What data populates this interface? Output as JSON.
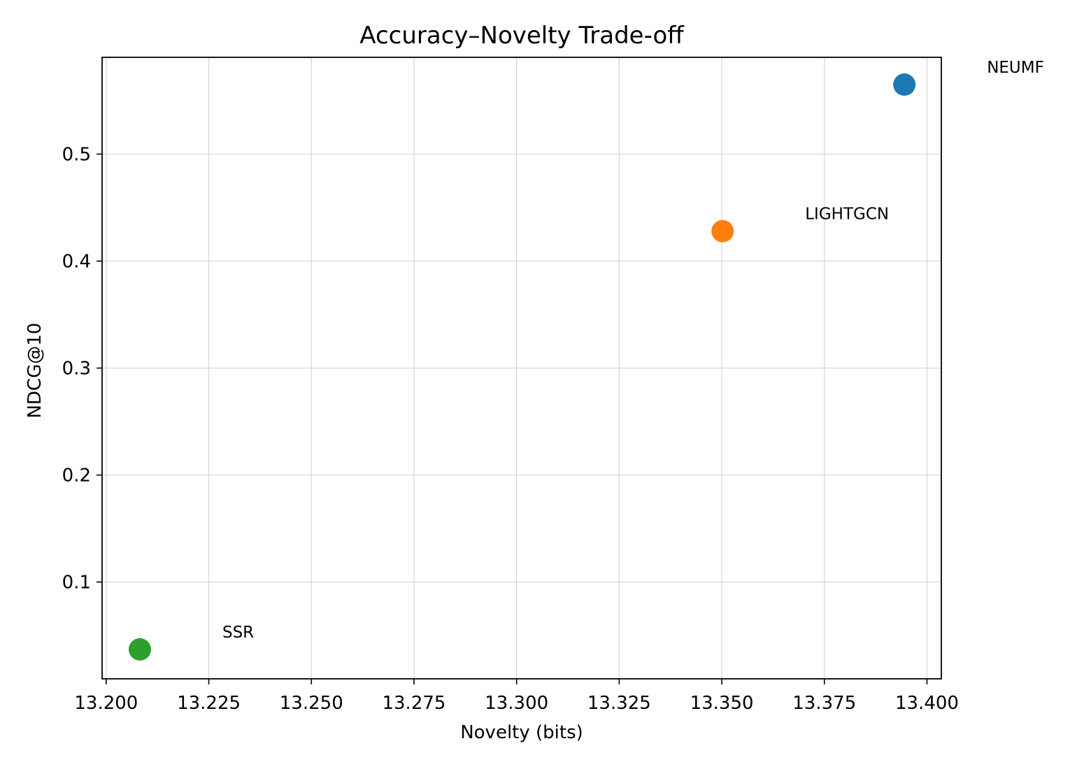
{
  "chart_data": {
    "type": "scatter",
    "title": "Accuracy–Novelty Trade-off",
    "xlabel": "Novelty (bits)",
    "ylabel": "NDCG@10",
    "xlim": [
      13.199,
      13.4035
    ],
    "ylim": [
      0.0095,
      0.5905
    ],
    "x_ticks": [
      13.2,
      13.225,
      13.25,
      13.275,
      13.3,
      13.325,
      13.35,
      13.375,
      13.4
    ],
    "x_tick_labels": [
      "13.200",
      "13.225",
      "13.250",
      "13.275",
      "13.300",
      "13.325",
      "13.350",
      "13.375",
      "13.400"
    ],
    "y_ticks": [
      0.1,
      0.2,
      0.3,
      0.4,
      0.5
    ],
    "y_tick_labels": [
      "0.1",
      "0.2",
      "0.3",
      "0.4",
      "0.5"
    ],
    "grid": true,
    "points": [
      {
        "label": "NEUMF",
        "x": 13.3945,
        "y": 0.565,
        "color": "#1f77b4"
      },
      {
        "label": "LIGHTGCN",
        "x": 13.3502,
        "y": 0.428,
        "color": "#ff7f0e"
      },
      {
        "label": "SSR",
        "x": 13.2082,
        "y": 0.037,
        "color": "#2ca02c"
      }
    ]
  }
}
